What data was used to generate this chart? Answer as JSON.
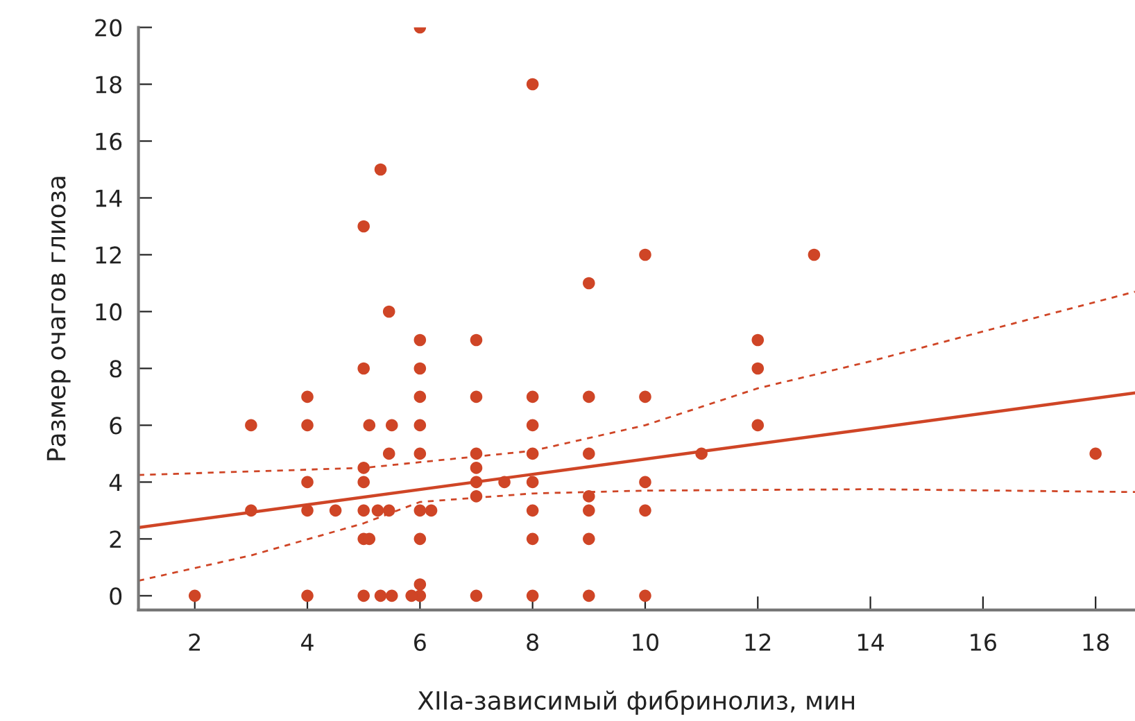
{
  "chart_data": {
    "type": "scatter",
    "xlabel": "XIIa-зависимый фибринолиз, мин",
    "ylabel": "Размер очагов глиоза",
    "xlim": [
      1,
      18.7
    ],
    "ylim": [
      -0.5,
      20
    ],
    "xticks": [
      2,
      4,
      6,
      8,
      10,
      12,
      14,
      16,
      18
    ],
    "yticks": [
      0,
      2,
      4,
      6,
      8,
      10,
      12,
      14,
      16,
      18,
      20
    ],
    "grid": false,
    "marker": "circle",
    "series": [
      {
        "color": "#cf4526",
        "x": [
          2,
          3,
          3,
          4,
          4,
          4,
          4,
          4,
          4.5,
          5,
          5,
          5,
          5,
          5,
          5,
          5,
          5.1,
          5.1,
          5.3,
          5.25,
          5.3,
          5.45,
          5.45,
          5.45,
          5.5,
          5.5,
          6,
          6,
          6,
          6,
          6,
          6,
          6,
          6,
          6,
          6,
          5.85,
          6.2,
          7,
          7,
          7,
          7,
          7,
          7,
          7,
          7.5,
          8,
          8,
          8,
          8,
          8,
          8,
          8,
          8,
          9,
          9,
          9,
          9,
          9,
          9,
          9,
          10,
          10,
          10,
          10,
          10,
          11,
          12,
          12,
          12,
          13,
          18
        ],
        "values": [
          0,
          6,
          3,
          7,
          6,
          4,
          3,
          0,
          3,
          13,
          8,
          4.5,
          4,
          3,
          2,
          0,
          6,
          2,
          15,
          3,
          0,
          10,
          5,
          3,
          6,
          0,
          20,
          9,
          8,
          7,
          6,
          5,
          3,
          2,
          0.4,
          0,
          0,
          3,
          9,
          7,
          5,
          4.5,
          4,
          3.5,
          0,
          4,
          18,
          7,
          6,
          5,
          4,
          3,
          2,
          0,
          11,
          7,
          5,
          3.5,
          3,
          2,
          0,
          12,
          7,
          4,
          3,
          0,
          5,
          9,
          8,
          6,
          12,
          5
        ]
      },
      {
        "type": "line",
        "color": "#cf4526",
        "line_style": "solid",
        "marker": "none",
        "x": [
          1,
          18.7
        ],
        "values": [
          2.4,
          7.14
        ]
      },
      {
        "type": "line",
        "color": "#cf4526",
        "line_style": "dashed",
        "marker": "none",
        "x": [
          1,
          5,
          6,
          8,
          10,
          12,
          14,
          16,
          18.7
        ],
        "values": [
          4.25,
          4.5,
          4.7,
          5.1,
          6.0,
          7.3,
          8.25,
          9.3,
          10.7
        ]
      },
      {
        "type": "line",
        "color": "#cf4526",
        "line_style": "dashed",
        "marker": "none",
        "x": [
          1,
          3,
          5,
          6,
          7,
          8,
          10,
          14,
          18.7
        ],
        "values": [
          0.53,
          1.42,
          2.55,
          3.3,
          3.45,
          3.6,
          3.7,
          3.75,
          3.65
        ]
      }
    ]
  }
}
